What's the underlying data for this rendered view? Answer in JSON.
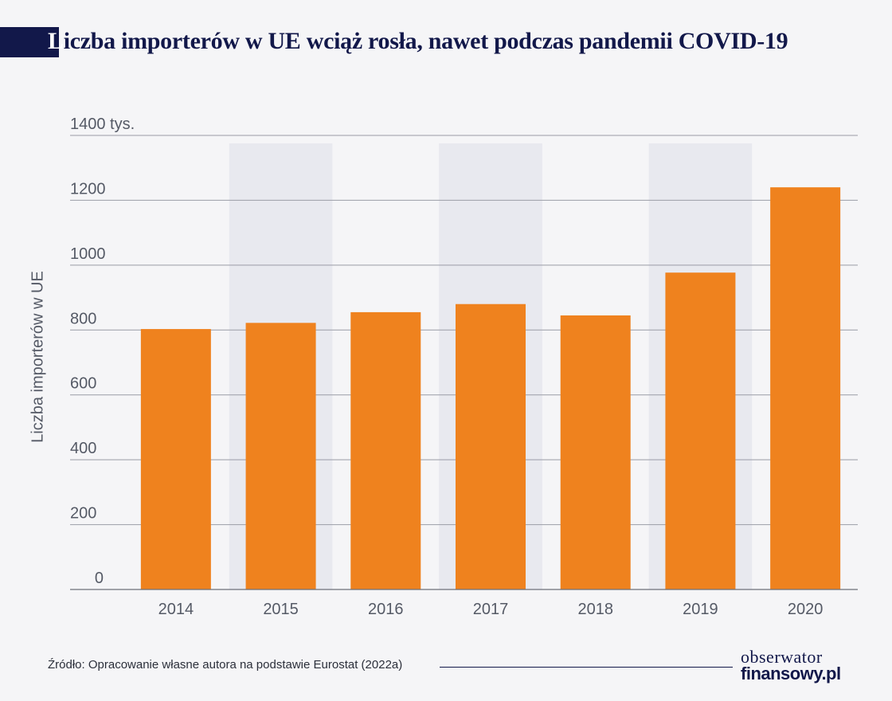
{
  "header": {
    "title_first": "L",
    "title_rest": "iczba importerów w UE wciąż rosła, nawet podczas pandemii COVID-19"
  },
  "chart_data": {
    "type": "bar",
    "categories": [
      "2014",
      "2015",
      "2016",
      "2017",
      "2018",
      "2019",
      "2020"
    ],
    "values": [
      803,
      822,
      855,
      880,
      845,
      977,
      1240
    ],
    "title": "Liczba importerów w UE wciąż rosła, nawet podczas pandemii COVID-19",
    "xlabel": "",
    "ylabel": "Liczba importerów w UE",
    "ylim": [
      0,
      1400
    ],
    "yticks": [
      0,
      200,
      400,
      600,
      800,
      1000,
      1200,
      1400
    ],
    "ytick_labels": [
      "0",
      "200",
      "400",
      "600",
      "800",
      "1000",
      "1200",
      "1400 tys."
    ],
    "grid": true,
    "bar_color": "#ef821e",
    "grid_color": "#9a9ca6",
    "alt_band_color": "#e8e9ef"
  },
  "footer": {
    "source": "Źródło: Opracowanie własne autora na podstawie Eurostat (2022a)",
    "logo_top": "obserwator",
    "logo_bottom": "finansowy.pl"
  }
}
